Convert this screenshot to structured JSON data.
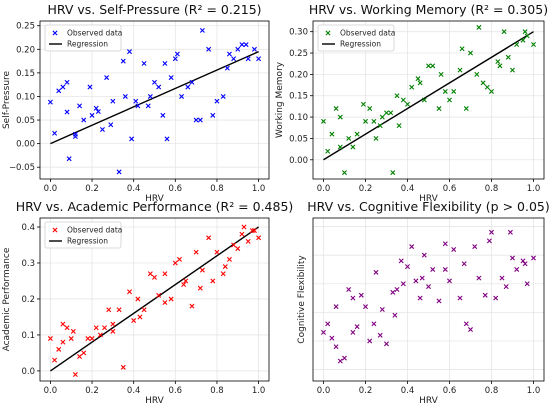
{
  "chart_data": [
    {
      "type": "scatter",
      "title": "HRV vs. Self-Pressure (R² = 0.215)",
      "xlabel": "HRV",
      "ylabel": "Self-Pressure",
      "xlim": [
        -0.05,
        1.05
      ],
      "ylim": [
        -0.075,
        0.26
      ],
      "xticks": [
        0.0,
        0.2,
        0.4,
        0.6,
        0.8,
        1.0
      ],
      "yticks": [
        -0.05,
        0.0,
        0.05,
        0.1,
        0.15,
        0.2,
        0.25
      ],
      "tick_labels_x": [
        "0.0",
        "0.2",
        "0.4",
        "0.6",
        "0.8",
        "1.0"
      ],
      "tick_labels_y": [
        "−0.05",
        "0.00",
        "0.05",
        "0.10",
        "0.15",
        "0.20",
        "0.25"
      ],
      "grid": true,
      "marker_color": "#0000ff",
      "legend": {
        "placement": "top-left",
        "entries": [
          "Observed data",
          "Regression"
        ]
      },
      "regression": {
        "x": [
          0.0,
          1.0
        ],
        "y": [
          0.0,
          0.195
        ]
      },
      "series": [
        {
          "name": "Observed data",
          "x": [
            0.0,
            0.02,
            0.04,
            0.06,
            0.08,
            0.09,
            0.12,
            0.14,
            0.16,
            0.19,
            0.2,
            0.22,
            0.23,
            0.25,
            0.27,
            0.29,
            0.3,
            0.33,
            0.36,
            0.38,
            0.39,
            0.41,
            0.42,
            0.45,
            0.48,
            0.5,
            0.52,
            0.54,
            0.55,
            0.58,
            0.6,
            0.61,
            0.63,
            0.66,
            0.68,
            0.7,
            0.73,
            0.76,
            0.8,
            0.83,
            0.86,
            0.88,
            0.9,
            0.92,
            0.95,
            0.98,
            1.0,
            0.08,
            0.35,
            0.56,
            0.72,
            0.78,
            0.94,
            0.85,
            0.12,
            0.47
          ],
          "y": [
            0.088,
            0.022,
            0.112,
            0.12,
            0.067,
            -0.032,
            0.015,
            0.08,
            0.05,
            0.12,
            0.06,
            0.075,
            0.068,
            0.03,
            0.14,
            0.04,
            0.09,
            -0.06,
            0.1,
            0.195,
            0.01,
            0.09,
            0.08,
            0.17,
            0.1,
            0.13,
            0.12,
            0.06,
            0.17,
            0.14,
            0.18,
            0.19,
            0.1,
            0.12,
            0.13,
            0.05,
            0.24,
            0.2,
            0.09,
            0.1,
            0.19,
            0.18,
            0.2,
            0.21,
            0.18,
            0.2,
            0.18,
            0.13,
            0.175,
            0.01,
            0.05,
            0.06,
            0.21,
            0.16,
            0.02,
            0.08
          ]
        }
      ]
    },
    {
      "type": "scatter",
      "title": "HRV vs. Working Memory (R² = 0.305)",
      "xlabel": "HRV",
      "ylabel": "Working Memory",
      "xlim": [
        -0.05,
        1.05
      ],
      "ylim": [
        -0.045,
        0.325
      ],
      "xticks": [
        0.0,
        0.2,
        0.4,
        0.6,
        0.8,
        1.0
      ],
      "yticks": [
        0.0,
        0.05,
        0.1,
        0.15,
        0.2,
        0.25,
        0.3
      ],
      "tick_labels_x": [
        "0.0",
        "0.2",
        "0.4",
        "0.6",
        "0.8",
        "1.0"
      ],
      "tick_labels_y": [
        "0.00",
        "0.05",
        "0.10",
        "0.15",
        "0.20",
        "0.25",
        "0.30"
      ],
      "grid": true,
      "marker_color": "#008000",
      "legend": {
        "placement": "top-left",
        "entries": [
          "Observed data",
          "Regression"
        ]
      },
      "regression": {
        "x": [
          0.0,
          1.0
        ],
        "y": [
          0.0,
          0.3
        ]
      },
      "series": [
        {
          "name": "Observed data",
          "x": [
            0.0,
            0.02,
            0.04,
            0.06,
            0.08,
            0.1,
            0.12,
            0.14,
            0.16,
            0.19,
            0.2,
            0.22,
            0.25,
            0.27,
            0.28,
            0.3,
            0.33,
            0.36,
            0.38,
            0.4,
            0.42,
            0.45,
            0.48,
            0.5,
            0.52,
            0.55,
            0.58,
            0.6,
            0.62,
            0.65,
            0.68,
            0.7,
            0.73,
            0.76,
            0.78,
            0.8,
            0.83,
            0.86,
            0.88,
            0.9,
            0.92,
            0.95,
            0.97,
            1.0,
            0.08,
            0.24,
            0.35,
            0.46,
            0.56,
            0.66,
            0.74,
            0.84,
            0.96,
            0.32
          ],
          "y": [
            0.09,
            0.02,
            0.06,
            0.12,
            0.1,
            -0.03,
            0.05,
            0.03,
            0.06,
            0.13,
            0.09,
            0.12,
            0.05,
            0.08,
            0.1,
            0.11,
            -0.03,
            0.08,
            0.14,
            0.13,
            0.17,
            0.19,
            0.14,
            0.22,
            0.22,
            0.12,
            0.16,
            0.14,
            0.16,
            0.21,
            0.12,
            0.25,
            0.2,
            0.18,
            0.17,
            0.16,
            0.23,
            0.3,
            0.24,
            0.21,
            0.27,
            0.28,
            0.29,
            0.27,
            0.03,
            0.09,
            0.15,
            0.18,
            0.2,
            0.26,
            0.31,
            0.22,
            0.3,
            0.11
          ]
        }
      ]
    },
    {
      "type": "scatter",
      "title": "HRV vs. Academic Performance (R² = 0.485)",
      "xlabel": "HRV",
      "ylabel": "Academic Performance",
      "xlim": [
        -0.05,
        1.05
      ],
      "ylim": [
        -0.028,
        0.425
      ],
      "xticks": [
        0.0,
        0.2,
        0.4,
        0.6,
        0.8,
        1.0
      ],
      "yticks": [
        0.0,
        0.1,
        0.2,
        0.3,
        0.4
      ],
      "tick_labels_x": [
        "0.0",
        "0.2",
        "0.4",
        "0.6",
        "0.8",
        "1.0"
      ],
      "tick_labels_y": [
        "0.0",
        "0.1",
        "0.2",
        "0.3",
        "0.4"
      ],
      "grid": true,
      "marker_color": "#ff0000",
      "legend": {
        "placement": "top-left",
        "entries": [
          "Observed data",
          "Regression"
        ]
      },
      "regression": {
        "x": [
          0.0,
          1.0
        ],
        "y": [
          0.0,
          0.4
        ]
      },
      "series": [
        {
          "name": "Observed data",
          "x": [
            0.0,
            0.02,
            0.04,
            0.06,
            0.08,
            0.1,
            0.12,
            0.14,
            0.16,
            0.18,
            0.2,
            0.22,
            0.24,
            0.26,
            0.28,
            0.3,
            0.33,
            0.35,
            0.38,
            0.4,
            0.42,
            0.45,
            0.48,
            0.5,
            0.52,
            0.55,
            0.58,
            0.6,
            0.62,
            0.65,
            0.68,
            0.7,
            0.73,
            0.76,
            0.78,
            0.8,
            0.83,
            0.86,
            0.88,
            0.9,
            0.92,
            0.95,
            0.97,
            1.0,
            0.06,
            0.11,
            0.3,
            0.43,
            0.55,
            0.64,
            0.72,
            0.84,
            0.93,
            0.98
          ],
          "y": [
            0.09,
            0.03,
            0.06,
            0.13,
            0.12,
            0.09,
            -0.01,
            0.04,
            0.05,
            0.09,
            0.09,
            0.12,
            0.1,
            0.12,
            0.17,
            0.11,
            0.17,
            0.01,
            0.22,
            0.14,
            0.2,
            0.17,
            0.27,
            0.26,
            0.21,
            0.19,
            0.2,
            0.3,
            0.31,
            0.25,
            0.18,
            0.33,
            0.28,
            0.37,
            0.25,
            0.33,
            0.27,
            0.31,
            0.35,
            0.34,
            0.38,
            0.36,
            0.39,
            0.37,
            0.08,
            0.11,
            0.13,
            0.15,
            0.27,
            0.24,
            0.23,
            0.29,
            0.4,
            0.39
          ]
        }
      ]
    },
    {
      "type": "scatter",
      "title": "HRV vs. Cognitive Flexibility (p > 0.05)",
      "xlabel": "HRV",
      "ylabel": "Cognitive Flexibility",
      "xlim": [
        -0.05,
        1.05
      ],
      "ylim": [
        -0.12,
        0.165
      ],
      "xticks": [
        0.0,
        0.2,
        0.4,
        0.6,
        0.8,
        1.0
      ],
      "yticks": [],
      "tick_labels_x": [
        "0.0",
        "0.2",
        "0.4",
        "0.6",
        "0.8",
        "1.0"
      ],
      "tick_labels_y": [],
      "grid": true,
      "marker_color": "#800080",
      "legend": null,
      "regression": null,
      "series": [
        {
          "name": "",
          "x": [
            0.0,
            0.02,
            0.04,
            0.06,
            0.08,
            0.1,
            0.12,
            0.14,
            0.16,
            0.18,
            0.2,
            0.22,
            0.25,
            0.27,
            0.28,
            0.3,
            0.33,
            0.35,
            0.37,
            0.4,
            0.42,
            0.44,
            0.46,
            0.48,
            0.5,
            0.52,
            0.55,
            0.58,
            0.6,
            0.62,
            0.65,
            0.67,
            0.7,
            0.72,
            0.74,
            0.77,
            0.8,
            0.82,
            0.85,
            0.87,
            0.9,
            0.92,
            0.95,
            0.97,
            1.0,
            0.06,
            0.14,
            0.24,
            0.38,
            0.47,
            0.58,
            0.68,
            0.79,
            0.89,
            0.96,
            0.34
          ],
          "y": [
            -0.035,
            -0.02,
            -0.045,
            0.01,
            -0.085,
            -0.08,
            0.04,
            0.025,
            -0.025,
            0.03,
            0.01,
            -0.05,
            0.07,
            -0.04,
            0.005,
            -0.055,
            0.035,
            0.04,
            0.09,
            0.08,
            0.115,
            0.055,
            0.025,
            0.1,
            0.045,
            0.075,
            0.02,
            0.075,
            0.055,
            0.11,
            0.025,
            0.085,
            -0.03,
            0.115,
            0.06,
            0.03,
            0.14,
            0.025,
            0.06,
            0.045,
            0.095,
            0.075,
            0.09,
            0.05,
            0.095,
            -0.06,
            -0.035,
            -0.02,
            0.05,
            0.06,
            0.12,
            -0.02,
            0.125,
            0.14,
            0.085,
            -0.005
          ]
        }
      ]
    }
  ]
}
